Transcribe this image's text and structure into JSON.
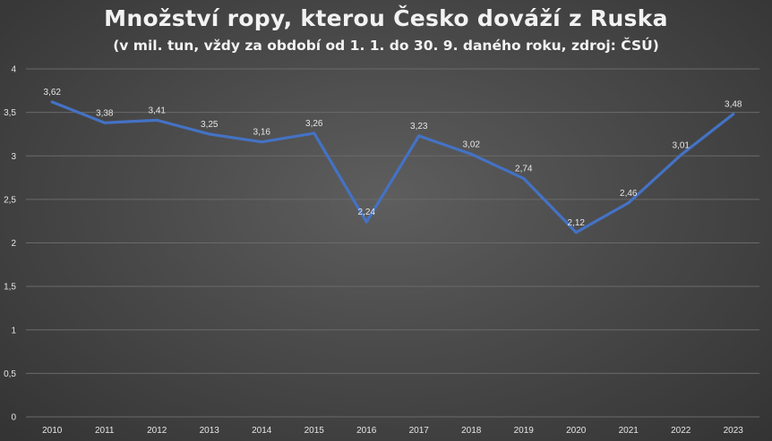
{
  "chart_data": {
    "type": "line",
    "title": "Množství ropy, kterou Česko dováží z Ruska",
    "subtitle": "(v mil. tun, vždy za období od 1. 1. do 30. 9. daného roku, zdroj: ČSÚ)",
    "xlabel": "",
    "ylabel": "",
    "categories": [
      "2010",
      "2011",
      "2012",
      "2013",
      "2014",
      "2015",
      "2016",
      "2017",
      "2018",
      "2019",
      "2020",
      "2021",
      "2022",
      "2023"
    ],
    "series": [
      {
        "values": [
          3.62,
          3.38,
          3.41,
          3.25,
          3.16,
          3.26,
          2.24,
          3.23,
          3.02,
          2.74,
          2.12,
          2.46,
          3.01,
          3.48
        ],
        "labels": [
          "3,62",
          "3,38",
          "3,41",
          "3,25",
          "3,16",
          "3,26",
          "2,24",
          "3,23",
          "3,02",
          "2,74",
          "2,12",
          "2,46",
          "3,01",
          "3,48"
        ],
        "color": "#4472c4"
      }
    ],
    "ylim": [
      0,
      4
    ],
    "yticks": [
      0,
      0.5,
      1,
      1.5,
      2,
      2.5,
      3,
      3.5,
      4
    ],
    "ytick_labels": [
      "0",
      "0,5",
      "1",
      "1,5",
      "2",
      "2,5",
      "3",
      "3,5",
      "4"
    ],
    "grid": true,
    "gridline_color": "#6a6a6a",
    "background_color": "#4a4a4a",
    "text_color": "#e6e6e6",
    "legend": "none"
  }
}
